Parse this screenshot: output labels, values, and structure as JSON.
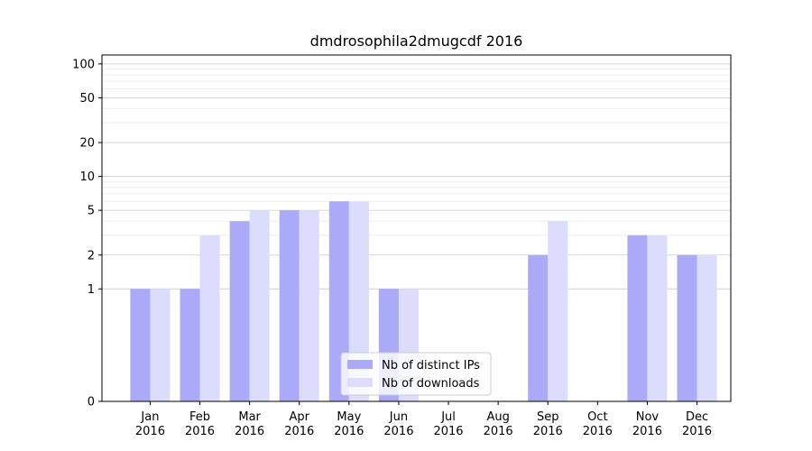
{
  "chart_data": {
    "type": "bar",
    "title": "dmdrosophila2dmugcdf 2016",
    "xlabel": "",
    "ylabel": "",
    "yscale": "symlog",
    "ylim": [
      0,
      120
    ],
    "yticks": [
      0,
      1,
      2,
      5,
      10,
      20,
      50,
      100
    ],
    "grid": true,
    "legend_position": "lower-center",
    "categories": [
      [
        "Jan",
        "2016"
      ],
      [
        "Feb",
        "2016"
      ],
      [
        "Mar",
        "2016"
      ],
      [
        "Apr",
        "2016"
      ],
      [
        "May",
        "2016"
      ],
      [
        "Jun",
        "2016"
      ],
      [
        "Jul",
        "2016"
      ],
      [
        "Aug",
        "2016"
      ],
      [
        "Sep",
        "2016"
      ],
      [
        "Oct",
        "2016"
      ],
      [
        "Nov",
        "2016"
      ],
      [
        "Dec",
        "2016"
      ]
    ],
    "series": [
      {
        "name": "Nb of distinct IPs",
        "color": "#aaaaf8",
        "values": [
          1,
          1,
          4,
          5,
          6,
          1,
          0,
          0,
          2,
          0,
          3,
          2
        ]
      },
      {
        "name": "Nb of downloads",
        "color": "#dcdcfc",
        "values": [
          1,
          3,
          5,
          5,
          6,
          1,
          0,
          0,
          4,
          0,
          3,
          2
        ]
      }
    ]
  }
}
